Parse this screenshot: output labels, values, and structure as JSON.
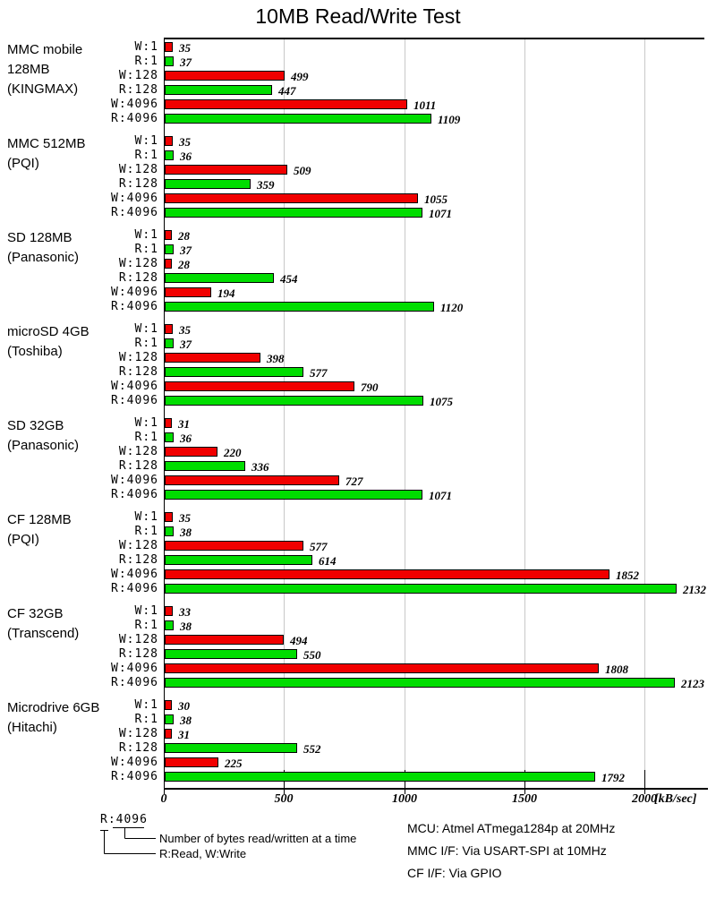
{
  "title": "10MB Read/Write Test",
  "chart_data": {
    "type": "bar",
    "orientation": "horizontal",
    "xlabel": "[kB/sec]",
    "xlim": [
      0,
      2246
    ],
    "x_ticks": [
      0,
      500,
      1000,
      1500,
      2000
    ],
    "grid": "vertical-lines-at-ticks",
    "bar_labels": [
      "W:1",
      "R:1",
      "W:128",
      "R:128",
      "W:4096",
      "R:4096"
    ],
    "colors": {
      "write": "#f10000",
      "read": "#00dd00",
      "gridline": "#c8c8c8"
    },
    "groups": [
      {
        "name_lines": [
          "MMC mobile",
          "128MB",
          "(KINGMAX)"
        ],
        "values": [
          35,
          37,
          499,
          447,
          1011,
          1109
        ]
      },
      {
        "name_lines": [
          "MMC 512MB",
          "(PQI)"
        ],
        "values": [
          35,
          36,
          509,
          359,
          1055,
          1071
        ]
      },
      {
        "name_lines": [
          "SD 128MB",
          "(Panasonic)"
        ],
        "values": [
          28,
          37,
          28,
          454,
          194,
          1120
        ]
      },
      {
        "name_lines": [
          "microSD 4GB",
          "(Toshiba)"
        ],
        "values": [
          35,
          37,
          398,
          577,
          790,
          1075
        ]
      },
      {
        "name_lines": [
          "SD 32GB",
          "(Panasonic)"
        ],
        "values": [
          31,
          36,
          220,
          336,
          727,
          1071
        ]
      },
      {
        "name_lines": [
          "CF 128MB",
          "(PQI)"
        ],
        "values": [
          35,
          38,
          577,
          614,
          1852,
          2132
        ]
      },
      {
        "name_lines": [
          "CF 32GB",
          "(Transcend)"
        ],
        "values": [
          33,
          38,
          494,
          550,
          1808,
          2123
        ]
      },
      {
        "name_lines": [
          "Microdrive 6GB",
          "(Hitachi)"
        ],
        "values": [
          30,
          38,
          31,
          552,
          225,
          1792
        ]
      }
    ]
  },
  "legend": {
    "sample": "R:4096",
    "line1": "Number of bytes read/written at a time",
    "line2": "R:Read, W:Write"
  },
  "notes": [
    "MCU: Atmel ATmega1284p at 20MHz",
    "MMC I/F: Via USART-SPI at 10MHz",
    "CF I/F: Via GPIO"
  ]
}
